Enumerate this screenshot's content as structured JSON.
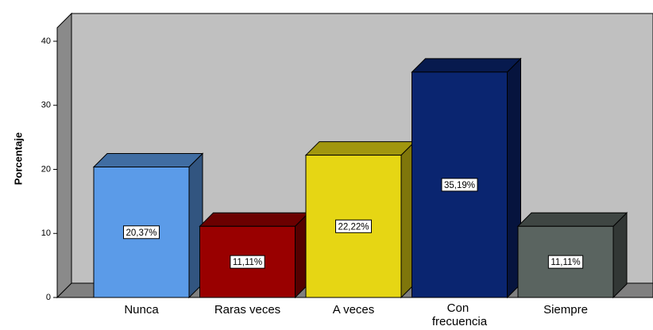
{
  "chart_data": {
    "type": "bar3d",
    "ylabel": "Porcentaje",
    "categories": [
      "Nunca",
      "Raras veces",
      "A veces",
      "Con frecuencia",
      "Siempre"
    ],
    "values": [
      20.37,
      11.11,
      22.22,
      35.19,
      11.11
    ],
    "value_labels": [
      "20,37%",
      "11,11%",
      "22,22%",
      "35,19%",
      "11,11%"
    ],
    "colors": [
      "#5b9be8",
      "#990000",
      "#e6d614",
      "#0a2570",
      "#5a6460"
    ],
    "ylim": [
      0,
      40
    ],
    "yticks": [
      0,
      10,
      20,
      30,
      40
    ],
    "grid": false
  }
}
